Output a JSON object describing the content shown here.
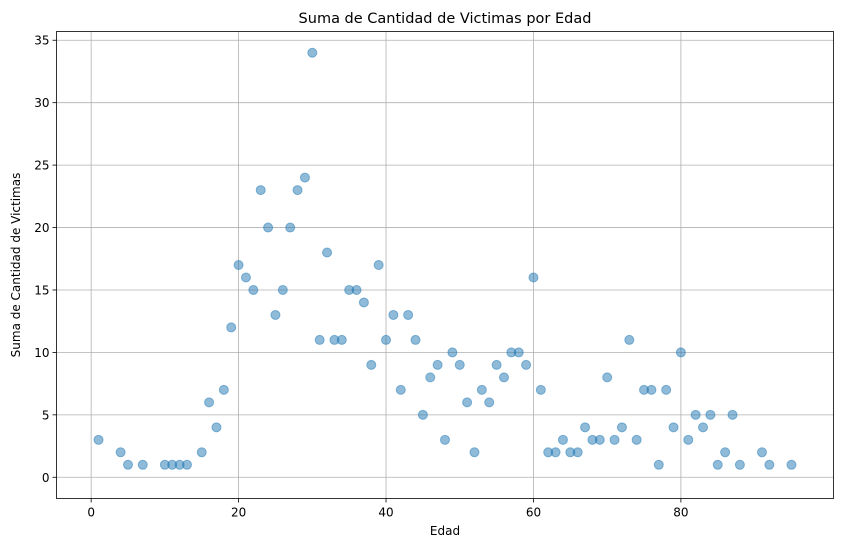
{
  "chart_data": {
    "type": "scatter",
    "title": "Suma de Cantidad de Victimas por Edad",
    "xlabel": "Edad",
    "ylabel": "Suma de Cantidad de Victimas",
    "xlim": [
      -4.7,
      100.7
    ],
    "ylim": [
      -1.7,
      35.7
    ],
    "xticks": [
      0,
      20,
      40,
      60,
      80
    ],
    "yticks": [
      0,
      5,
      10,
      15,
      20,
      25,
      30,
      35
    ],
    "grid": true,
    "color": "#1f77b4",
    "x": [
      1,
      4,
      5,
      7,
      10,
      11,
      12,
      13,
      15,
      16,
      17,
      18,
      19,
      20,
      21,
      22,
      23,
      24,
      25,
      26,
      27,
      28,
      29,
      30,
      31,
      32,
      33,
      34,
      35,
      36,
      37,
      38,
      39,
      40,
      41,
      42,
      43,
      44,
      45,
      46,
      47,
      48,
      49,
      50,
      51,
      52,
      53,
      54,
      55,
      56,
      57,
      58,
      59,
      60,
      61,
      62,
      63,
      64,
      65,
      66,
      67,
      68,
      69,
      70,
      71,
      72,
      73,
      74,
      75,
      76,
      77,
      78,
      79,
      80,
      81,
      82,
      83,
      84,
      85,
      86,
      87,
      88,
      91,
      92,
      95
    ],
    "y": [
      3,
      2,
      1,
      1,
      1,
      1,
      1,
      1,
      2,
      6,
      4,
      7,
      12,
      17,
      16,
      15,
      23,
      20,
      13,
      15,
      20,
      23,
      24,
      34,
      11,
      18,
      11,
      11,
      15,
      15,
      14,
      9,
      17,
      11,
      13,
      7,
      13,
      11,
      5,
      8,
      9,
      3,
      10,
      9,
      6,
      2,
      7,
      6,
      9,
      8,
      10,
      10,
      9,
      16,
      7,
      2,
      2,
      3,
      2,
      2,
      4,
      3,
      3,
      8,
      3,
      4,
      11,
      3,
      7,
      7,
      1,
      7,
      4,
      10,
      3,
      5,
      4,
      5,
      1,
      2,
      5,
      1,
      2,
      1,
      1
    ]
  }
}
